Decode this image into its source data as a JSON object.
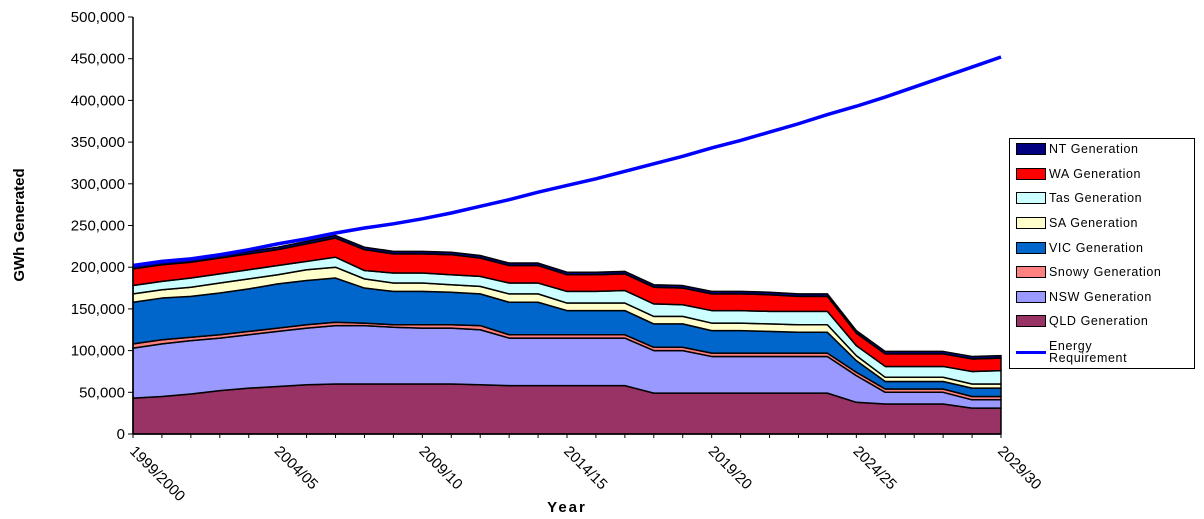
{
  "chart_data": {
    "type": "stacked-area-line",
    "y_axis_label": "GWh Generated",
    "x_axis_label": "Year",
    "categories": [
      "1999/2000",
      null,
      null,
      null,
      null,
      "2004/05",
      null,
      null,
      null,
      null,
      "2009/10",
      null,
      null,
      null,
      null,
      "2014/15",
      null,
      null,
      null,
      null,
      "2019/20",
      null,
      null,
      null,
      null,
      "2024/25",
      null,
      null,
      null,
      null,
      "2029/30"
    ],
    "ylim": [
      0,
      500000
    ],
    "yticks": [
      0,
      {
        "value": 50000,
        "label": "50,000"
      },
      {
        "value": 100000,
        "label": "100,000"
      },
      {
        "value": 150000,
        "label": "150,000"
      },
      {
        "value": 200000,
        "label": "200,000"
      },
      {
        "value": 250000,
        "label": "250,000"
      },
      {
        "value": 300000,
        "label": "300,000"
      },
      {
        "value": 350000,
        "label": "350,000"
      },
      {
        "value": 400000,
        "label": "400,000"
      },
      {
        "value": 450000,
        "label": "450,000"
      },
      {
        "value": 500000,
        "label": "500,000"
      }
    ],
    "grid": false,
    "legend": "right",
    "series": [
      {
        "name": "QLD Generation",
        "color": "#993366",
        "values": [
          43000,
          45000,
          48000,
          52000,
          55000,
          57000,
          59000,
          60000,
          60000,
          60000,
          60000,
          60000,
          59000,
          58000,
          58000,
          58000,
          58000,
          58000,
          49000,
          49000,
          49000,
          49000,
          49000,
          49000,
          49000,
          38000,
          36000,
          36000,
          36000,
          31000,
          31000
        ]
      },
      {
        "name": "NSW Generation",
        "color": "#9999ff",
        "values": [
          60000,
          63000,
          64000,
          63000,
          64000,
          66000,
          68000,
          70000,
          70000,
          68000,
          67000,
          67000,
          66000,
          57000,
          57000,
          57000,
          57000,
          57000,
          51000,
          51000,
          44000,
          44000,
          44000,
          44000,
          44000,
          32000,
          14000,
          14000,
          14000,
          10000,
          10000
        ]
      },
      {
        "name": "Snowy Generation",
        "color": "#ff8080",
        "values": [
          5000,
          5000,
          4000,
          4000,
          4000,
          4000,
          4000,
          4000,
          3000,
          3000,
          4000,
          4000,
          5000,
          4000,
          4000,
          4000,
          4000,
          4000,
          4000,
          4000,
          4000,
          4000,
          4000,
          4000,
          4000,
          4000,
          4000,
          4000,
          4000,
          4000,
          4000
        ]
      },
      {
        "name": "VIC Generation",
        "color": "#0066cc",
        "values": [
          50000,
          50000,
          49000,
          50000,
          51000,
          53000,
          53000,
          53000,
          42000,
          40000,
          40000,
          39000,
          38000,
          39000,
          39000,
          29000,
          29000,
          29000,
          28000,
          28000,
          27000,
          27000,
          26000,
          25000,
          25000,
          14000,
          9000,
          9000,
          9000,
          10000,
          10000
        ]
      },
      {
        "name": "SA Generation",
        "color": "#ffffcc",
        "values": [
          10000,
          10000,
          11000,
          12000,
          12000,
          11000,
          13000,
          13000,
          11000,
          10000,
          10000,
          9000,
          9000,
          10000,
          10000,
          9000,
          9000,
          9000,
          9000,
          9000,
          9000,
          9000,
          9000,
          9000,
          9000,
          6000,
          5000,
          5000,
          5000,
          5000,
          5000
        ]
      },
      {
        "name": "Tas Generation",
        "color": "#ccffff",
        "values": [
          10000,
          10000,
          11000,
          11000,
          11000,
          11000,
          10000,
          12000,
          10000,
          12000,
          12000,
          12000,
          12000,
          13000,
          13000,
          14000,
          14000,
          15000,
          15000,
          14000,
          15000,
          15000,
          15000,
          16000,
          16000,
          12000,
          13000,
          13000,
          13000,
          15000,
          16000
        ]
      },
      {
        "name": "WA Generation",
        "color": "#ff0000",
        "values": [
          20000,
          20000,
          19000,
          19000,
          19000,
          19000,
          21000,
          23000,
          25000,
          23000,
          23000,
          24000,
          22000,
          21000,
          21000,
          20000,
          20000,
          20000,
          20000,
          20000,
          20000,
          20000,
          20000,
          18000,
          18000,
          15000,
          15000,
          15000,
          15000,
          15000,
          15000
        ]
      },
      {
        "name": "NT Generation",
        "color": "#000080",
        "values": [
          3000,
          3000,
          3000,
          3000,
          3000,
          3000,
          3000,
          3000,
          3000,
          3000,
          3000,
          3000,
          3000,
          3000,
          3000,
          3000,
          3000,
          3000,
          3000,
          3000,
          3000,
          3000,
          3000,
          3000,
          3000,
          3000,
          3000,
          3000,
          3000,
          3000,
          3000
        ]
      },
      {
        "name": "Energy Requirement",
        "color": "#0000ff",
        "kind": "line",
        "values": [
          202000,
          207000,
          210000,
          215000,
          221000,
          228000,
          234000,
          241000,
          247000,
          252000,
          258000,
          265000,
          273000,
          281000,
          290000,
          298000,
          306000,
          315000,
          324000,
          333000,
          343000,
          352000,
          362000,
          372000,
          383000,
          393000,
          404000,
          416000,
          428000,
          440000,
          452000
        ]
      }
    ]
  }
}
